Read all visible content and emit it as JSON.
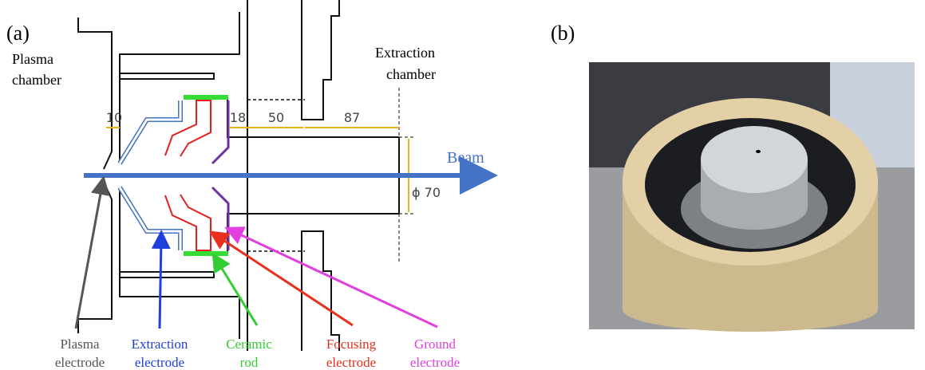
{
  "panel_a": {
    "label": "(a)",
    "plasma_chamber": [
      "Plasma",
      "chamber"
    ],
    "extraction_chamber": [
      "Extraction",
      "chamber"
    ],
    "dimensions": [
      "10",
      "18",
      "50",
      "87"
    ],
    "diameter": "ϕ 70",
    "beam": "Beam",
    "callouts": [
      {
        "lines": [
          "Plasma",
          "electrode"
        ],
        "color": "#555555"
      },
      {
        "lines": [
          "Extraction",
          "electrode"
        ],
        "color": "#1f3fdc"
      },
      {
        "lines": [
          "Ceramic",
          "rod"
        ],
        "color": "#33cc33"
      },
      {
        "lines": [
          "Focusing",
          "electrode"
        ],
        "color": "#e8301c"
      },
      {
        "lines": [
          "Ground",
          "electrode"
        ],
        "color": "#e040e0"
      }
    ]
  },
  "panel_b": {
    "label": "(b)"
  }
}
